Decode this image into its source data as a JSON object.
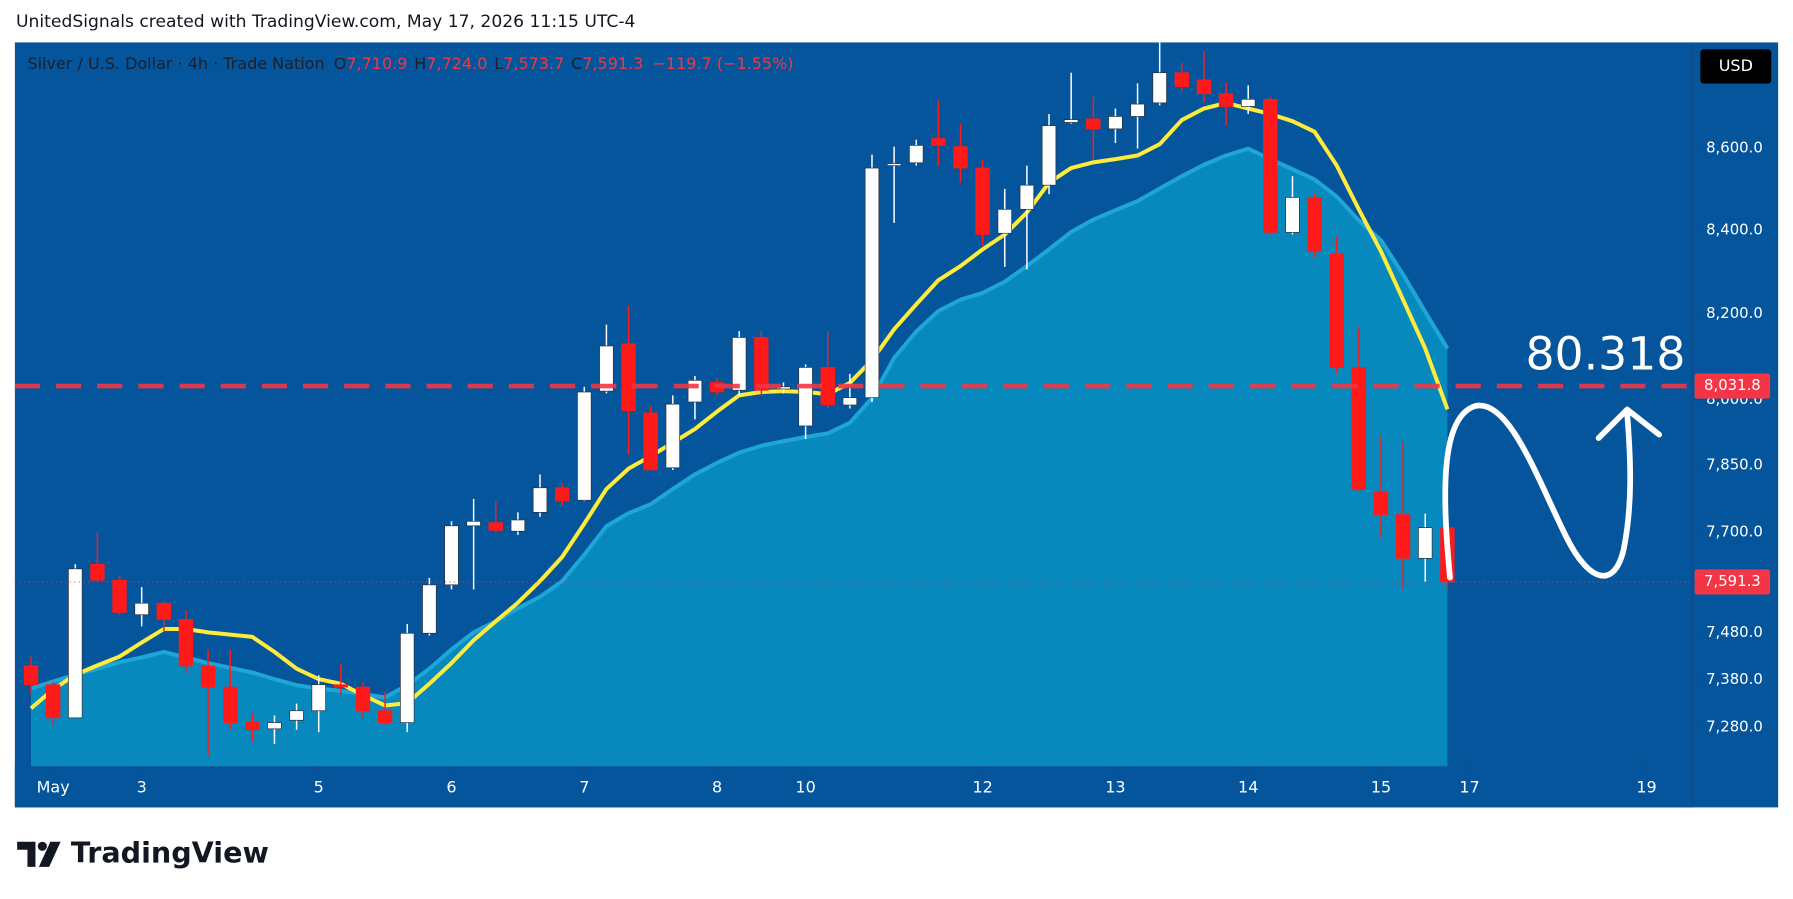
{
  "header": "UnitedSignals created with TradingView.com, May 17, 2026 11:15 UTC-4",
  "logo": "TradingView",
  "chart_data": {
    "type": "candlestick",
    "title": "Silver / U.S. Dollar · 4h · Trade Nation",
    "ohlc_legend": [
      {
        "key": "O",
        "text": "7,710.9"
      },
      {
        "key": "H",
        "text": "7,724.0"
      },
      {
        "key": "L",
        "text": "7,573.7"
      },
      {
        "key": "C",
        "text": "7,591.3"
      }
    ],
    "change": "−119.7 (−1.55%)",
    "currency": "USD",
    "annotation": "80.318",
    "up_color": "#ffffff",
    "down_color": "#ff1a1a",
    "open": [
      7410,
      7370,
      7300,
      7630,
      7595,
      7520,
      7545,
      7510,
      7410,
      7365,
      7292,
      7277,
      7295,
      7315,
      7370,
      7365,
      7315,
      7290,
      7480,
      7585,
      7715,
      7722,
      7703,
      7745,
      7800,
      7772,
      8020,
      8130,
      7970,
      7845,
      7995,
      8040,
      8022,
      8145,
      8025,
      7940,
      8075,
      7988,
      8005,
      8558,
      8565,
      8625,
      8605,
      8552,
      8393,
      8451,
      8510,
      8665,
      8674,
      8649,
      8680,
      8714,
      8790,
      8772,
      8737,
      8705,
      8723,
      8395,
      8480,
      8343,
      8075,
      7791,
      7740,
      7643,
      7710.9
    ],
    "high": [
      7430,
      7375,
      7630,
      7700,
      7605,
      7580,
      7550,
      7530,
      7445,
      7445,
      7310,
      7305,
      7330,
      7390,
      7415,
      7375,
      7355,
      7500,
      7600,
      7725,
      7775,
      7770,
      7745,
      7830,
      7810,
      8030,
      8175,
      8220,
      7985,
      8010,
      8055,
      8050,
      8160,
      8160,
      8040,
      8082,
      8160,
      8060,
      8585,
      8605,
      8622,
      8720,
      8662,
      8572,
      8501,
      8558,
      8686,
      8790,
      8729,
      8700,
      8763,
      8867,
      8815,
      8845,
      8766,
      8758,
      8729,
      8532,
      8489,
      8385,
      8170,
      7919,
      7905,
      7742,
      7724
    ],
    "low": [
      7350,
      7285,
      7300,
      7590,
      7520,
      7495,
      7485,
      7395,
      7220,
      7275,
      7250,
      7245,
      7275,
      7270,
      7350,
      7300,
      7285,
      7270,
      7475,
      7575,
      7575,
      7700,
      7695,
      7735,
      7760,
      7770,
      8015,
      7875,
      7840,
      7840,
      7955,
      8010,
      8010,
      8010,
      8015,
      7910,
      7980,
      7980,
      7995,
      8418,
      8558,
      8558,
      8516,
      8362,
      8312,
      8306,
      8488,
      8662,
      8572,
      8614,
      8600,
      8708,
      8743,
      8714,
      8657,
      8686,
      8390,
      8390,
      8335,
      8062,
      7791,
      7690,
      7576,
      7592,
      7573.7
    ],
    "close": [
      7370,
      7300,
      7620,
      7595,
      7525,
      7545,
      7510,
      7410,
      7365,
      7290,
      7275,
      7290,
      7315,
      7370,
      7365,
      7315,
      7290,
      7480,
      7585,
      7715,
      7725,
      7705,
      7728,
      7800,
      7770,
      8018,
      8125,
      7975,
      7840,
      7990,
      8045,
      8018,
      8145,
      8022,
      8030,
      8075,
      7988,
      8005,
      8552,
      8563,
      8608,
      8608,
      8552,
      8390,
      8451,
      8510,
      8657,
      8672,
      8649,
      8680,
      8711,
      8790,
      8755,
      8737,
      8705,
      8723,
      8395,
      8480,
      8349,
      8075,
      7796,
      7740,
      7643,
      7710.9,
      7591.3
    ],
    "lines": [
      {
        "color": "#1ea6d8",
        "fill": "#0889bd",
        "values": [
          7362,
          7377,
          7391,
          7404,
          7418,
          7428,
          7440,
          7428,
          7416,
          7406,
          7396,
          7382,
          7369,
          7362,
          7357,
          7350,
          7343,
          7369,
          7404,
          7445,
          7482,
          7506,
          7534,
          7559,
          7593,
          7651,
          7714,
          7743,
          7763,
          7797,
          7830,
          7856,
          7879,
          7895,
          7905,
          7915,
          7923,
          7947,
          8004,
          8097,
          8159,
          8207,
          8234,
          8250,
          8277,
          8314,
          8354,
          8396,
          8426,
          8449,
          8471,
          8502,
          8532,
          8560,
          8583,
          8600,
          8574,
          8549,
          8524,
          8482,
          8424,
          8376,
          8294,
          8205,
          8119
        ]
      },
      {
        "color": "#ffeb3b",
        "values": [
          7320,
          7360,
          7391,
          7411,
          7430,
          7460,
          7489,
          7489,
          7482,
          7477,
          7472,
          7440,
          7404,
          7382,
          7372,
          7348,
          7326,
          7331,
          7372,
          7416,
          7465,
          7506,
          7546,
          7593,
          7646,
          7720,
          7797,
          7843,
          7871,
          7902,
          7933,
          7973,
          8010,
          8018,
          8020,
          8018,
          8013,
          8039,
          8092,
          8164,
          8223,
          8280,
          8314,
          8354,
          8390,
          8443,
          8516,
          8552,
          8566,
          8574,
          8583,
          8611,
          8671,
          8700,
          8714,
          8700,
          8686,
          8668,
          8642,
          8558,
          8451,
          8349,
          8234,
          8119,
          7978
        ]
      }
    ],
    "price_lines": [
      {
        "value": 8031.8,
        "label": "8,031.8",
        "color": "#f23645",
        "style": "dashed"
      },
      {
        "value": 7591.3,
        "label": "7,591.3",
        "color": "#f23645",
        "style": "dotted"
      }
    ],
    "log_scale": true,
    "ylim": [
      7199,
      8867
    ],
    "yticks": [
      {
        "value": 7280,
        "label": "7,280.0"
      },
      {
        "value": 7380,
        "label": "7,380.0"
      },
      {
        "value": 7480,
        "label": "7,480.0"
      },
      {
        "value": 7700,
        "label": "7,700.0"
      },
      {
        "value": 7850,
        "label": "7,850.0"
      },
      {
        "value": 8000,
        "label": "8,000.0"
      },
      {
        "value": 8200,
        "label": "8,200.0"
      },
      {
        "value": 8400,
        "label": "8,400.0"
      },
      {
        "value": 8600,
        "label": "8,600.0"
      }
    ],
    "xlim": [
      -0.73,
      75.07
    ],
    "xticks": [
      {
        "value": 1,
        "label": "May"
      },
      {
        "value": 5,
        "label": "3"
      },
      {
        "value": 13,
        "label": "5"
      },
      {
        "value": 19,
        "label": "6"
      },
      {
        "value": 25,
        "label": "7"
      },
      {
        "value": 31,
        "label": "8"
      },
      {
        "value": 35,
        "label": "10"
      },
      {
        "value": 43,
        "label": "12"
      },
      {
        "value": 49,
        "label": "13"
      },
      {
        "value": 55,
        "label": "14"
      },
      {
        "value": 61,
        "label": "15"
      },
      {
        "value": 65,
        "label": "17"
      },
      {
        "value": 73,
        "label": "19"
      }
    ]
  }
}
